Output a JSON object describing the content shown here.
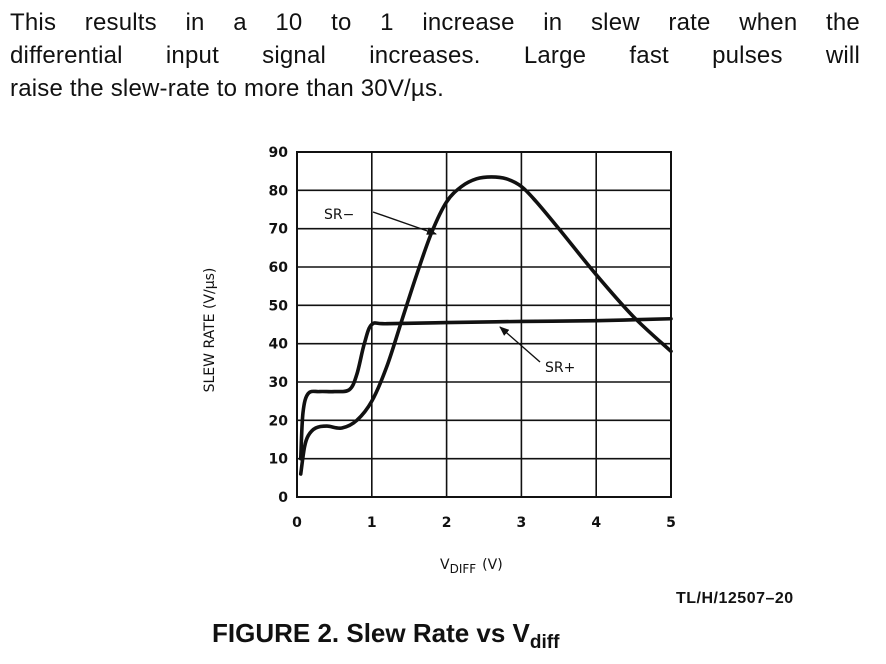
{
  "text": {
    "lines": [
      "This results in a 10 to 1 increase in slew rate when the",
      "differential input signal increases. Large fast pulses will",
      "raise the slew-rate to more than 30V/µs."
    ]
  },
  "figure": {
    "code": "TL/H/12507–20",
    "caption_main": "FIGURE 2. Slew Rate vs V",
    "caption_sub": "diff"
  },
  "chart_data": {
    "type": "line",
    "ylabel": "SLEW RATE (V/µs)",
    "xlabel_main": "V",
    "xlabel_sub": "DIFF",
    "xlabel_unit": "(V)",
    "xlim": [
      0,
      5
    ],
    "ylim": [
      0,
      90
    ],
    "x_ticks": [
      0,
      1,
      2,
      3,
      4,
      5
    ],
    "y_ticks": [
      0,
      10,
      20,
      30,
      40,
      50,
      60,
      70,
      80,
      90
    ],
    "grid": true,
    "series": [
      {
        "name": "SR+",
        "x": [
          0.05,
          0.08,
          0.15,
          0.3,
          0.5,
          0.7,
          0.8,
          0.9,
          1.0,
          1.2,
          2.0,
          3.0,
          4.0,
          5.0
        ],
        "y": [
          10,
          22,
          27,
          27.5,
          27.5,
          28,
          32,
          40,
          45,
          45.2,
          45.5,
          45.8,
          46,
          46.5
        ]
      },
      {
        "name": "SR-",
        "x": [
          0.05,
          0.1,
          0.15,
          0.25,
          0.4,
          0.6,
          0.8,
          1.0,
          1.2,
          1.4,
          1.6,
          1.8,
          2.0,
          2.2,
          2.4,
          2.6,
          2.8,
          3.0,
          3.2,
          3.5,
          4.0,
          4.5,
          5.0
        ],
        "y": [
          6,
          13,
          16,
          18,
          18.5,
          18,
          20,
          25,
          34,
          46,
          58,
          69,
          77,
          81,
          83,
          83.5,
          83,
          81,
          77,
          70,
          58,
          47,
          38
        ]
      }
    ],
    "annotations": [
      {
        "text": "SR−",
        "series": "SR-"
      },
      {
        "text": "SR+",
        "series": "SR+"
      }
    ]
  }
}
